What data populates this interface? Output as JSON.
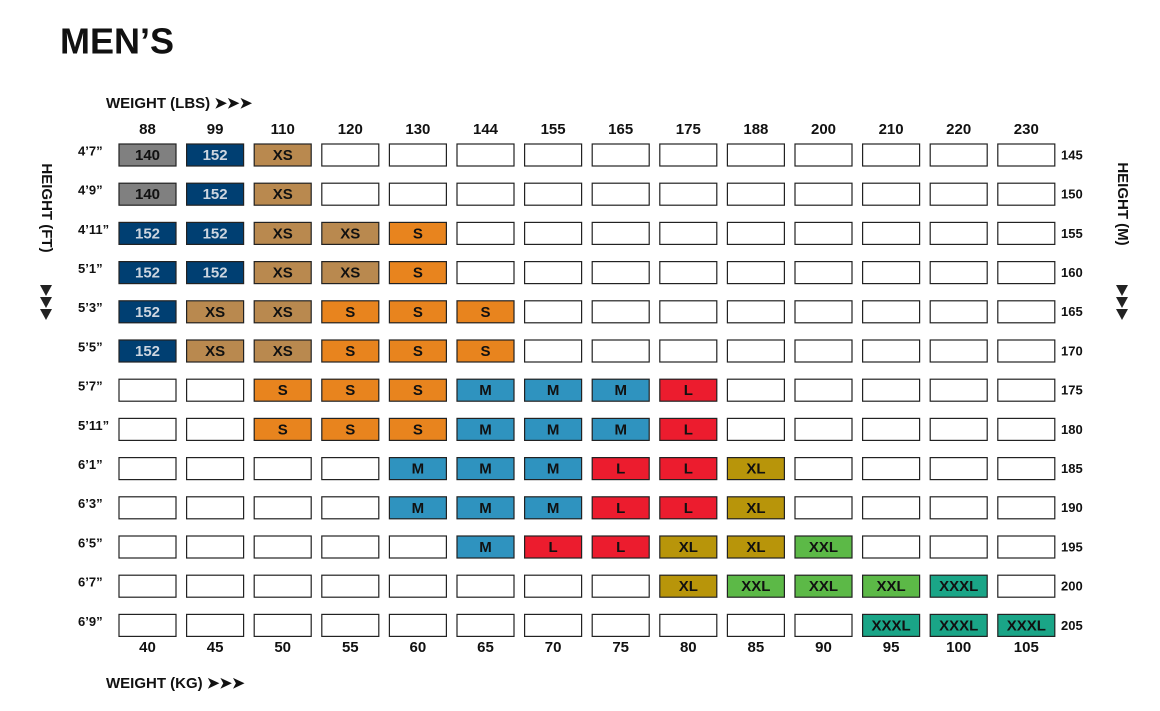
{
  "title": "MEN’S",
  "weight_lbs_label": "WEIGHT (LBS) ➤➤➤",
  "weight_kg_label": "WEIGHT (KG) ➤➤➤",
  "height_ft_label": "HEIGHT (FT)",
  "height_cm_label": "HEIGHT (M)",
  "weights_lbs": [
    88,
    99,
    110,
    120,
    130,
    144,
    155,
    165,
    175,
    188,
    200,
    210,
    220,
    230
  ],
  "weights_kg": [
    40,
    45,
    50,
    55,
    60,
    65,
    70,
    75,
    80,
    85,
    90,
    95,
    100,
    105
  ],
  "heights_ft": [
    "4’7”",
    "4’9”",
    "4’11”",
    "5’1”",
    "5’3”",
    "5’5”",
    "5’7”",
    "5’11”",
    "6’1”",
    "6’3”",
    "6’5”",
    "6’7”",
    "6’9”"
  ],
  "heights_cm": [
    145,
    150,
    155,
    160,
    165,
    170,
    175,
    180,
    185,
    190,
    195,
    200,
    205
  ],
  "rows": [
    [
      "140",
      "152",
      "XS",
      null,
      null,
      null,
      null,
      null,
      null,
      null,
      null,
      null,
      null,
      null
    ],
    [
      "140",
      "152",
      "XS",
      null,
      null,
      null,
      null,
      null,
      null,
      null,
      null,
      null,
      null,
      null
    ],
    [
      "152",
      "152",
      "XS",
      "XS",
      "S",
      null,
      null,
      null,
      null,
      null,
      null,
      null,
      null,
      null
    ],
    [
      "152",
      "152",
      "XS",
      "XS",
      "S",
      null,
      null,
      null,
      null,
      null,
      null,
      null,
      null,
      null
    ],
    [
      "152",
      "XS",
      "XS",
      "S",
      "S",
      "S",
      null,
      null,
      null,
      null,
      null,
      null,
      null,
      null
    ],
    [
      "152",
      "XS",
      "XS",
      "S",
      "S",
      "S",
      null,
      null,
      null,
      null,
      null,
      null,
      null,
      null
    ],
    [
      null,
      null,
      "S",
      "S",
      "S",
      "M",
      "M",
      "M",
      "L",
      null,
      null,
      null,
      null,
      null
    ],
    [
      null,
      null,
      "S",
      "S",
      "S",
      "M",
      "M",
      "M",
      "L",
      null,
      null,
      null,
      null,
      null
    ],
    [
      null,
      null,
      null,
      null,
      "M",
      "M",
      "M",
      "L",
      "L",
      "XL",
      null,
      null,
      null,
      null
    ],
    [
      null,
      null,
      null,
      null,
      "M",
      "M",
      "M",
      "L",
      "L",
      "XL",
      null,
      null,
      null,
      null
    ],
    [
      null,
      null,
      null,
      null,
      null,
      "M",
      "L",
      "L",
      "XL",
      "XL",
      "XXL",
      null,
      null,
      null
    ],
    [
      null,
      null,
      null,
      null,
      null,
      null,
      null,
      null,
      "XL",
      "XXL",
      "XXL",
      "XXL",
      "XXXL",
      null
    ],
    [
      null,
      null,
      null,
      null,
      null,
      null,
      null,
      null,
      null,
      null,
      null,
      "XXXL",
      "XXXL",
      "XXXL"
    ]
  ],
  "cell_styles": {
    "140": {
      "fill": "#808080",
      "text": "#111111"
    },
    "152": {
      "fill": "#003f72",
      "text": "#cdd6e0"
    },
    "XS": {
      "fill": "#b9894f",
      "text": "#111111"
    },
    "S": {
      "fill": "#e8841e",
      "text": "#111111"
    },
    "M": {
      "fill": "#2f93bf",
      "text": "#111111"
    },
    "L": {
      "fill": "#ec1c2e",
      "text": "#111111"
    },
    "XL": {
      "fill": "#b8950a",
      "text": "#111111"
    },
    "XXL": {
      "fill": "#5cb947",
      "text": "#111111"
    },
    "XXXL": {
      "fill": "#1aa587",
      "text": "#111111"
    }
  }
}
